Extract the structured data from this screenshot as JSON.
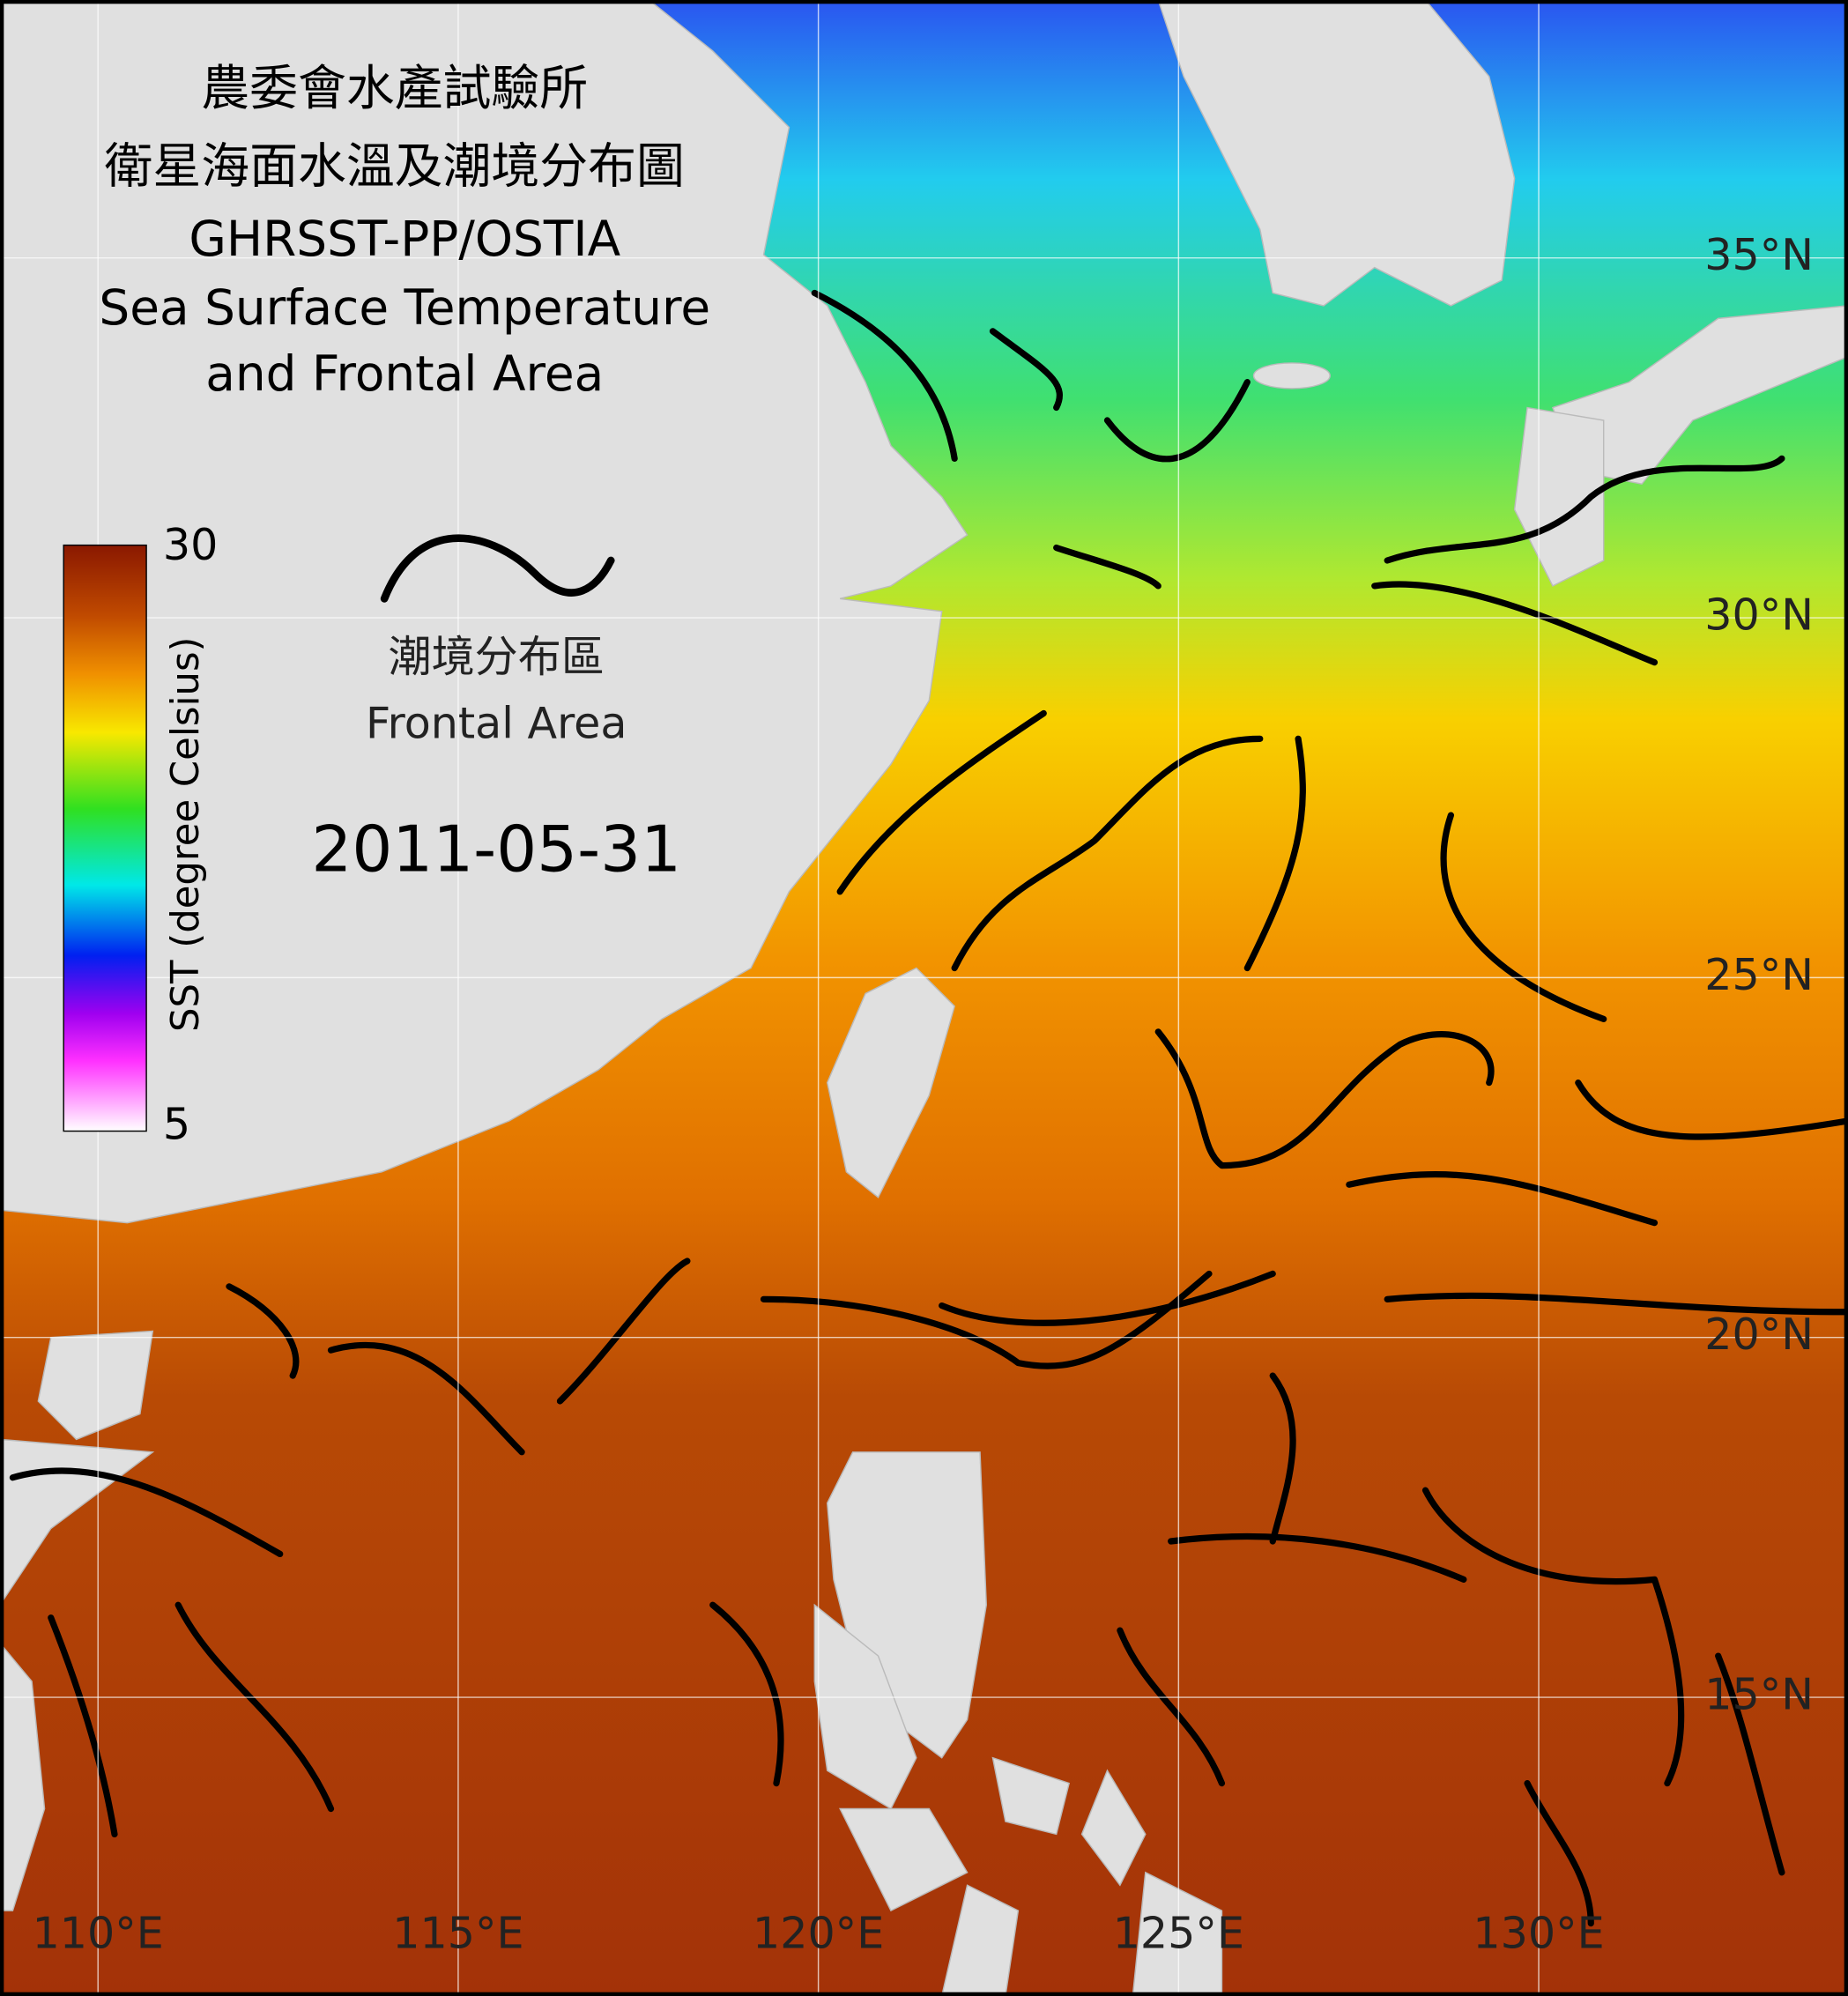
{
  "title": [
    "農委會水產試驗所",
    "衛星海面水溫及潮境分布圖",
    "GHRSST-PP/OSTIA",
    "Sea Surface Temperature",
    "and Frontal Area"
  ],
  "colorbar": {
    "label": "SST (degree Celsius)",
    "ticks": [
      30,
      5
    ]
  },
  "legend": {
    "label_zh": "潮境分布區",
    "label_en": "Frontal Area"
  },
  "date": "2011-05-31",
  "lon_ticks": [
    {
      "value": 110,
      "label": "110°E"
    },
    {
      "value": 115,
      "label": "115°E"
    },
    {
      "value": 120,
      "label": "120°E"
    },
    {
      "value": 125,
      "label": "125°E"
    },
    {
      "value": 130,
      "label": "130°E"
    }
  ],
  "lat_ticks": [
    {
      "value": 35,
      "label": "35°N"
    },
    {
      "value": 30,
      "label": "30°N"
    },
    {
      "value": 25,
      "label": "25°N"
    },
    {
      "value": 20,
      "label": "20°N"
    },
    {
      "value": 15,
      "label": "15°N"
    }
  ]
}
